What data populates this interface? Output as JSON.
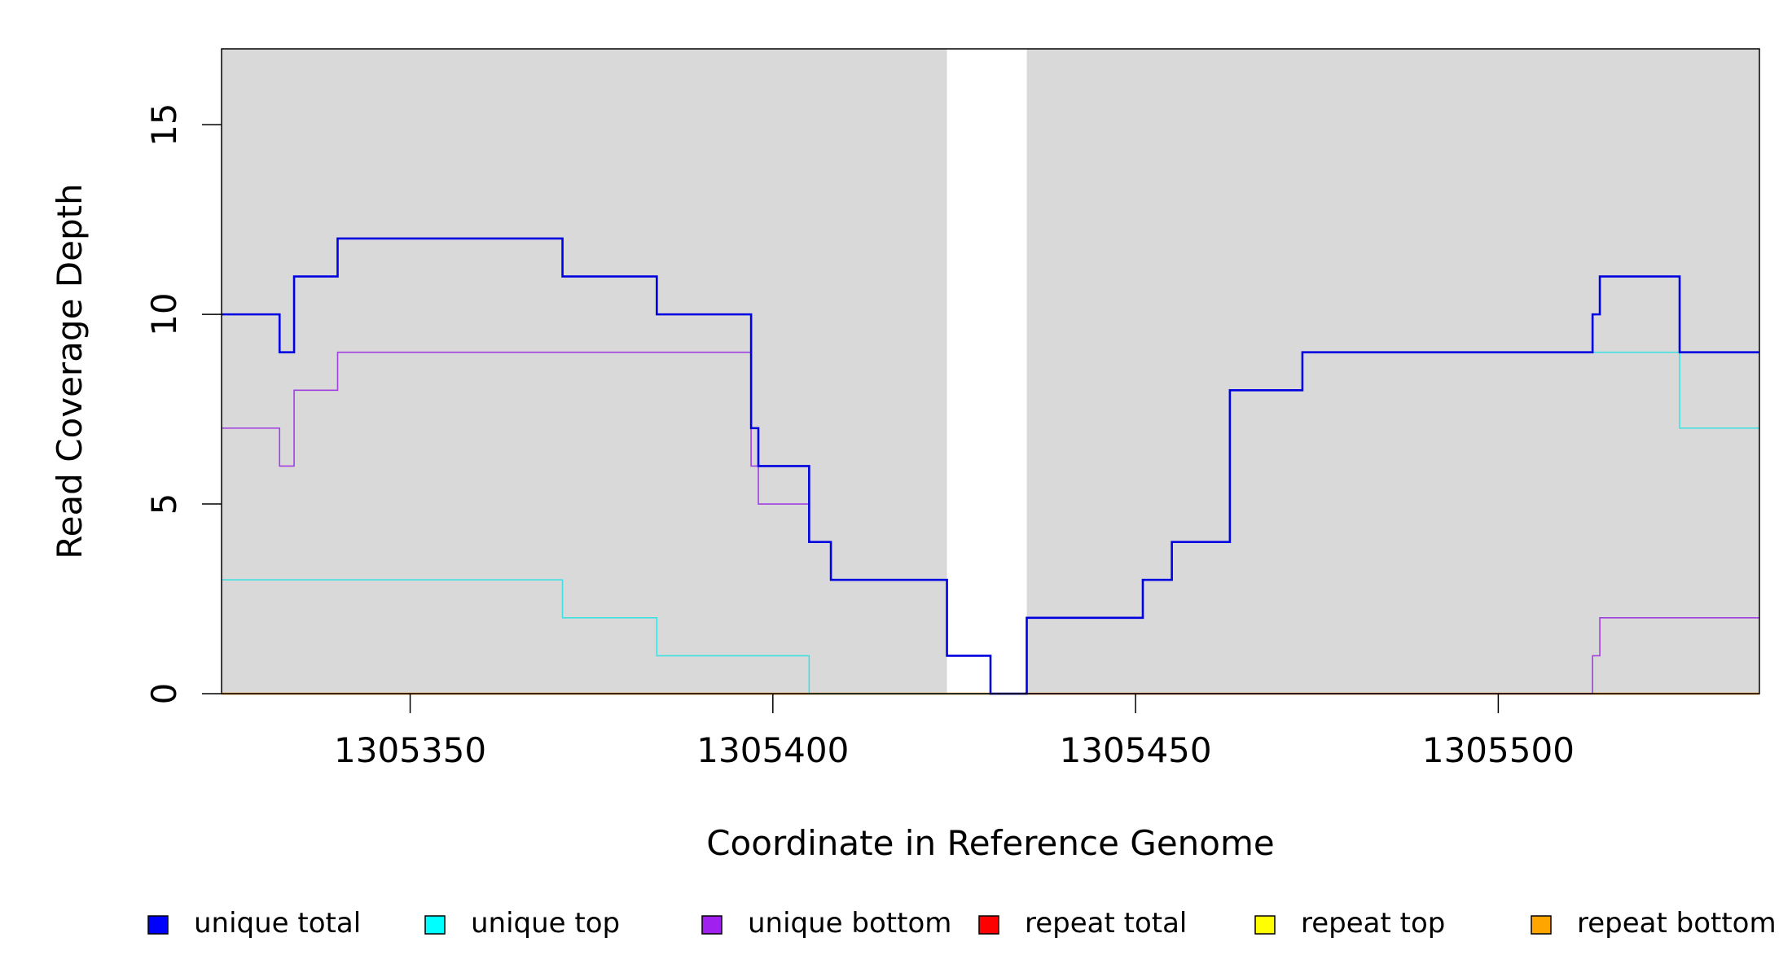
{
  "chart_data": {
    "type": "line",
    "title": "",
    "xlabel": "Coordinate in Reference Genome",
    "ylabel": "Read Coverage Depth",
    "xlim": [
      1305324,
      1305536
    ],
    "ylim": [
      0,
      17
    ],
    "x_ticks": [
      1305350,
      1305400,
      1305450,
      1305500
    ],
    "x_tick_labels": [
      "1305350",
      "1305400",
      "1305450",
      "1305500"
    ],
    "y_ticks": [
      0,
      5,
      10,
      15
    ],
    "y_tick_labels": [
      "0",
      "5",
      "10",
      "15"
    ],
    "grid": false,
    "legend_position": "bottom",
    "shaded_regions": [
      {
        "x0": 1305324,
        "x1": 1305424,
        "color": "#d9d9d9"
      },
      {
        "x0": 1305435,
        "x1": 1305536,
        "color": "#d9d9d9"
      }
    ],
    "series": [
      {
        "name": "unique total",
        "color": "#0000e0",
        "legend_color": "#0000ff",
        "width": 2.6,
        "steps": [
          [
            1305324,
            10
          ],
          [
            1305332,
            9
          ],
          [
            1305334,
            11
          ],
          [
            1305340,
            12
          ],
          [
            1305371,
            11
          ],
          [
            1305384,
            10
          ],
          [
            1305397,
            7
          ],
          [
            1305398,
            6
          ],
          [
            1305405,
            4
          ],
          [
            1305408,
            3
          ],
          [
            1305424,
            1
          ],
          [
            1305430,
            0
          ],
          [
            1305435,
            2
          ],
          [
            1305451,
            3
          ],
          [
            1305455,
            4
          ],
          [
            1305463,
            8
          ],
          [
            1305473,
            9
          ],
          [
            1305513,
            10
          ],
          [
            1305514,
            11
          ],
          [
            1305525,
            9
          ],
          [
            1305536,
            9
          ]
        ]
      },
      {
        "name": "unique top",
        "color": "#40e0e0",
        "legend_color": "#00ffff",
        "width": 1.6,
        "steps": [
          [
            1305324,
            3
          ],
          [
            1305371,
            2
          ],
          [
            1305384,
            1
          ],
          [
            1305405,
            0
          ],
          [
            1305435,
            2
          ],
          [
            1305451,
            3
          ],
          [
            1305455,
            4
          ],
          [
            1305463,
            8
          ],
          [
            1305473,
            9
          ],
          [
            1305525,
            7
          ],
          [
            1305536,
            7
          ]
        ]
      },
      {
        "name": "unique bottom",
        "color": "#a040e0",
        "legend_color": "#a020f0",
        "width": 1.6,
        "steps": [
          [
            1305324,
            7
          ],
          [
            1305332,
            6
          ],
          [
            1305334,
            8
          ],
          [
            1305340,
            9
          ],
          [
            1305397,
            6
          ],
          [
            1305398,
            5
          ],
          [
            1305405,
            4
          ],
          [
            1305408,
            3
          ],
          [
            1305424,
            1
          ],
          [
            1305430,
            0
          ],
          [
            1305513,
            1
          ],
          [
            1305514,
            2
          ],
          [
            1305536,
            2
          ]
        ]
      },
      {
        "name": "repeat total",
        "color": "#ff0000",
        "legend_color": "#ff0000",
        "width": 1.6,
        "steps": [
          [
            1305324,
            0
          ],
          [
            1305536,
            0
          ]
        ]
      },
      {
        "name": "repeat top",
        "color": "#ffff00",
        "legend_color": "#ffff00",
        "width": 1.6,
        "steps": [
          [
            1305324,
            0
          ],
          [
            1305536,
            0
          ]
        ]
      },
      {
        "name": "repeat bottom",
        "color": "#f0901a",
        "legend_color": "#ffa500",
        "width": 2.4,
        "steps": [
          [
            1305324,
            0
          ],
          [
            1305536,
            0
          ]
        ]
      }
    ]
  }
}
